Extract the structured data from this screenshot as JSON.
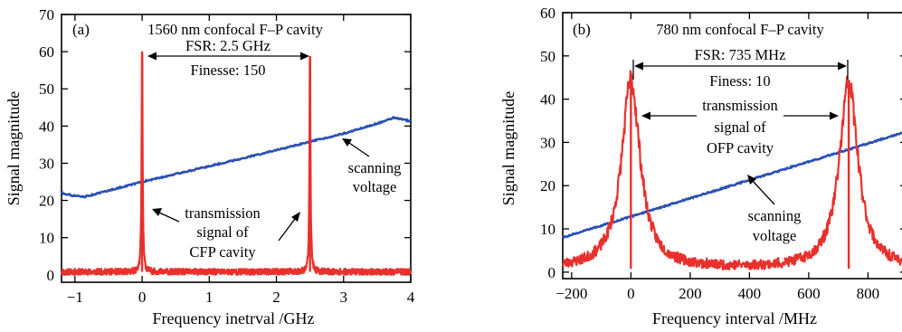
{
  "chart_data": [
    {
      "type": "line",
      "panel_label": "(a)",
      "title": "1560 nm confocal F–P cavity",
      "xlabel": "Frequency inetrval /GHz",
      "ylabel": "Signal magnitude",
      "xlim": [
        -1.2,
        4
      ],
      "ylim": [
        -2,
        70
      ],
      "xticks": [
        -1,
        0,
        1,
        2,
        3,
        4
      ],
      "xtick_labels": [
        "−1",
        "0",
        "1",
        "2",
        "3",
        "4"
      ],
      "yticks": [
        0,
        10,
        20,
        30,
        40,
        50,
        60,
        70
      ],
      "ytick_labels": [
        "0",
        "10",
        "20",
        "30",
        "40",
        "50",
        "60",
        "70"
      ],
      "annotations": {
        "fsr": "FSR: 2.5 GHz",
        "finesse": "Finesse: 150",
        "transmission_lines": [
          "transmission",
          "signal of",
          "CFP cavity"
        ],
        "scanning_lines": [
          "scanning",
          "voltage"
        ]
      },
      "series": [
        {
          "color": "#e8312c",
          "peaks": [
            {
              "center": 0.0,
              "height": 59
            },
            {
              "center": 2.5,
              "height": 58
            }
          ],
          "peak_hwhm": 0.009,
          "baseline": 0.8
        },
        {
          "color": "#2a4fb5",
          "x": [
            -1.2,
            -1.0,
            -0.85,
            0.0,
            1.0,
            2.0,
            3.0,
            3.6,
            3.75,
            4.0
          ],
          "y": [
            22,
            21.2,
            21,
            25,
            29.2,
            33.5,
            38,
            41.2,
            42.3,
            41.3
          ]
        }
      ]
    },
    {
      "type": "line",
      "panel_label": "(b)",
      "title": "780 nm confocal F–P cavity",
      "xlabel": "Frequency interval /MHz",
      "ylabel": "Signal magnitude",
      "xlim": [
        -230,
        930
      ],
      "ylim": [
        -1.5,
        60
      ],
      "xticks": [
        -200,
        0,
        200,
        400,
        600,
        800
      ],
      "xtick_labels": [
        "−200",
        "0",
        "200",
        "400",
        "600",
        "800"
      ],
      "yticks": [
        0,
        10,
        20,
        30,
        40,
        50,
        60
      ],
      "ytick_labels": [
        "0",
        "10",
        "20",
        "30",
        "40",
        "50",
        "60"
      ],
      "annotations": {
        "fsr": "FSR: 735 MHz",
        "finesse": "Finess: 10",
        "transmission_lines": [
          "transmission",
          "signal of",
          "OFP cavity"
        ],
        "scanning_lines": [
          "scanning",
          "voltage"
        ]
      },
      "series": [
        {
          "color": "#e8312c",
          "peaks": [
            {
              "center": 0,
              "height": 43.5
            },
            {
              "center": 735,
              "height": 43
            }
          ],
          "peak_hwhm": 38,
          "baseline": 0.8
        },
        {
          "color": "#2a4fb5",
          "x": [
            -230,
            930
          ],
          "y": [
            8,
            32.5
          ]
        }
      ]
    }
  ]
}
